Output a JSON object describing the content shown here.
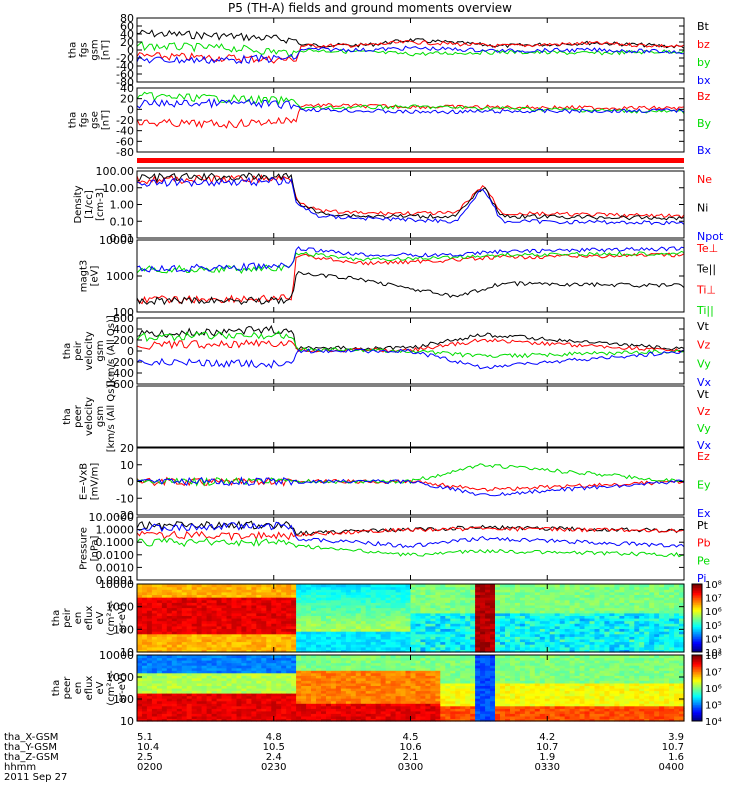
{
  "title": "P5 (TH-A) fields and ground moments overview",
  "colors": {
    "black": "#000000",
    "red": "#ff0000",
    "green": "#00dd00",
    "blue": "#0000ff"
  },
  "chart_data": [
    {
      "type": "line",
      "panel": "fgs_gsm",
      "ylabel": [
        "tha",
        "fgs",
        "gsm",
        "[nT]"
      ],
      "ylim": [
        -80,
        80
      ],
      "yticks": [
        "80",
        "60",
        "40",
        "20",
        "0",
        "-20",
        "-40",
        "-60",
        "-80"
      ],
      "legend": [
        {
          "name": "Bt",
          "color": "black"
        },
        {
          "name": "bz",
          "color": "red"
        },
        {
          "name": "by",
          "color": "green"
        },
        {
          "name": "bx",
          "color": "blue"
        }
      ],
      "series": [
        {
          "name": "Bt",
          "color": "black",
          "x": [
            0,
            20,
            35,
            36,
            50,
            60,
            80,
            100,
            120
          ],
          "y": [
            42,
            35,
            25,
            12,
            12,
            25,
            10,
            18,
            8
          ]
        },
        {
          "name": "bz",
          "color": "red",
          "x": [
            0,
            20,
            35,
            36,
            50,
            60,
            80,
            100,
            120
          ],
          "y": [
            -15,
            -20,
            -25,
            10,
            12,
            20,
            10,
            17,
            8
          ]
        },
        {
          "name": "by",
          "color": "green",
          "x": [
            0,
            20,
            35,
            36,
            50,
            60,
            80,
            100,
            120
          ],
          "y": [
            10,
            5,
            -8,
            0,
            -5,
            -10,
            -5,
            -8,
            -3
          ]
        },
        {
          "name": "bx",
          "color": "blue",
          "x": [
            0,
            20,
            35,
            36,
            50,
            60,
            80,
            100,
            120
          ],
          "y": [
            -25,
            -25,
            -20,
            2,
            0,
            5,
            -2,
            0,
            -5
          ]
        }
      ]
    },
    {
      "type": "line",
      "panel": "fgs_gse",
      "ylabel": [
        "tha",
        "fgs",
        "gse",
        "[nT]"
      ],
      "ylim": [
        -80,
        40
      ],
      "yticks": [
        "40",
        "20",
        "0",
        "-20",
        "-40",
        "-60",
        "-80"
      ],
      "legend": [
        {
          "name": "Bz",
          "color": "red"
        },
        {
          "name": "By",
          "color": "green"
        },
        {
          "name": "Bx",
          "color": "blue"
        }
      ],
      "series": [
        {
          "name": "Bz",
          "color": "red",
          "x": [
            0,
            20,
            35,
            36,
            60,
            120
          ],
          "y": [
            -25,
            -28,
            -20,
            8,
            5,
            2
          ]
        },
        {
          "name": "By",
          "color": "green",
          "x": [
            0,
            20,
            35,
            36,
            60,
            120
          ],
          "y": [
            25,
            20,
            15,
            2,
            5,
            -5
          ]
        },
        {
          "name": "Bx",
          "color": "blue",
          "x": [
            0,
            20,
            35,
            36,
            60,
            120
          ],
          "y": [
            10,
            12,
            8,
            0,
            -5,
            -2
          ]
        }
      ]
    },
    {
      "type": "line",
      "panel": "density",
      "log": true,
      "ylabel": [
        "Density",
        "[1/cc]",
        "[cm-3]"
      ],
      "ylim": [
        0.01,
        100
      ],
      "yticks": [
        "100.00",
        "10.00",
        "1.00",
        "0.10",
        "0.01"
      ],
      "legend": [
        {
          "name": "Ne",
          "color": "red"
        },
        {
          "name": "Ni",
          "color": "black"
        },
        {
          "name": "Npot",
          "color": "blue"
        }
      ],
      "series": [
        {
          "name": "Ne",
          "color": "red",
          "x": [
            0,
            34,
            35,
            40,
            50,
            70,
            76,
            80,
            120
          ],
          "y": [
            30,
            35,
            2,
            0.4,
            0.3,
            0.3,
            15,
            0.3,
            0.2
          ]
        },
        {
          "name": "Ni",
          "color": "black",
          "x": [
            0,
            34,
            35,
            40,
            50,
            70,
            76,
            80,
            120
          ],
          "y": [
            40,
            45,
            1.5,
            0.3,
            0.2,
            0.2,
            12,
            0.2,
            0.15
          ]
        },
        {
          "name": "Npot",
          "color": "blue",
          "x": [
            0,
            34,
            35,
            40,
            50,
            70,
            76,
            80,
            120
          ],
          "y": [
            20,
            25,
            1,
            0.2,
            0.15,
            0.1,
            10,
            0.1,
            0.08
          ]
        }
      ]
    },
    {
      "type": "line",
      "panel": "magt3",
      "log": true,
      "ylabel": [
        "magt3",
        "[eV]"
      ],
      "ylim": [
        30,
        10000
      ],
      "yticks": [
        "10000",
        "1000",
        "100"
      ],
      "legend": [
        {
          "name": "Te⊥",
          "color": "red"
        },
        {
          "name": "Te||",
          "color": "black"
        },
        {
          "name": "Ti⊥",
          "color": "red"
        },
        {
          "name": "Ti||",
          "color": "green"
        }
      ],
      "series": [
        {
          "name": "Ti⊥",
          "color": "red",
          "x": [
            0,
            34,
            35,
            50,
            70,
            80,
            120
          ],
          "y": [
            80,
            90,
            3000,
            1500,
            2000,
            2500,
            3000
          ]
        },
        {
          "name": "Ti||",
          "color": "green",
          "x": [
            0,
            34,
            35,
            50,
            70,
            80,
            120
          ],
          "y": [
            900,
            1000,
            3500,
            2000,
            2500,
            3000,
            3500
          ]
        },
        {
          "name": "Te||",
          "color": "black",
          "x": [
            0,
            34,
            35,
            50,
            70,
            80,
            120
          ],
          "y": [
            70,
            80,
            700,
            400,
            100,
            300,
            250
          ]
        },
        {
          "name": "Te⊥",
          "color": "blue",
          "x": [
            0,
            34,
            35,
            50,
            70,
            80,
            120
          ],
          "y": [
            1000,
            1200,
            5000,
            3000,
            3000,
            4000,
            5000
          ]
        }
      ]
    },
    {
      "type": "line",
      "panel": "peir_velocity",
      "ylabel": [
        "tha",
        "peir",
        "velocity",
        "gsm",
        "[km/s (All Qs)]"
      ],
      "ylim": [
        -600,
        600
      ],
      "yticks": [
        "600",
        "400",
        "200",
        "0",
        "-200",
        "-400",
        "-600"
      ],
      "legend": [
        {
          "name": "Vt",
          "color": "black"
        },
        {
          "name": "Vz",
          "color": "red"
        },
        {
          "name": "Vy",
          "color": "green"
        },
        {
          "name": "Vx",
          "color": "blue"
        }
      ],
      "series": [
        {
          "name": "Vt",
          "color": "black",
          "x": [
            0,
            34,
            35,
            60,
            76,
            120
          ],
          "y": [
            300,
            400,
            50,
            60,
            300,
            30
          ]
        },
        {
          "name": "Vz",
          "color": "red",
          "x": [
            0,
            34,
            35,
            60,
            76,
            120
          ],
          "y": [
            100,
            150,
            20,
            10,
            200,
            5
          ]
        },
        {
          "name": "Vy",
          "color": "green",
          "x": [
            0,
            34,
            35,
            60,
            76,
            120
          ],
          "y": [
            250,
            300,
            30,
            0,
            -100,
            0
          ]
        },
        {
          "name": "Vx",
          "color": "blue",
          "x": [
            0,
            34,
            35,
            60,
            76,
            120
          ],
          "y": [
            -200,
            -250,
            0,
            0,
            -300,
            -10
          ]
        }
      ]
    },
    {
      "type": "line",
      "panel": "peer_velocity",
      "ylabel": [
        "tha",
        "peer",
        "velocity",
        "gsm",
        "[km/s (All Qs)]"
      ],
      "ylim": [
        -600,
        600
      ],
      "yticks": [],
      "legend": [
        {
          "name": "Vt",
          "color": "black"
        },
        {
          "name": "Vz",
          "color": "red"
        },
        {
          "name": "Vy",
          "color": "green"
        },
        {
          "name": "Vx",
          "color": "blue"
        }
      ],
      "series": []
    },
    {
      "type": "line",
      "panel": "efield",
      "ylabel": [
        "E=-VxB",
        "[mV/m]"
      ],
      "ylim": [
        -20,
        20
      ],
      "yticks": [
        "20",
        "10",
        "0",
        "-10",
        "-20"
      ],
      "legend": [
        {
          "name": "Ez",
          "color": "red"
        },
        {
          "name": "Ey",
          "color": "green"
        },
        {
          "name": "Ex",
          "color": "blue"
        }
      ],
      "series": [
        {
          "name": "Ez",
          "color": "red",
          "x": [
            0,
            60,
            76,
            120
          ],
          "y": [
            0,
            0,
            -5,
            0
          ]
        },
        {
          "name": "Ey",
          "color": "green",
          "x": [
            0,
            60,
            76,
            120
          ],
          "y": [
            0,
            0,
            10,
            0
          ]
        },
        {
          "name": "Ex",
          "color": "blue",
          "x": [
            0,
            60,
            76,
            120
          ],
          "y": [
            0,
            0,
            -8,
            0
          ]
        }
      ]
    },
    {
      "type": "line",
      "panel": "pressure",
      "log": true,
      "ylabel": [
        "Pressure",
        "[nPa]"
      ],
      "ylim": [
        0.0001,
        10
      ],
      "yticks": [
        "10.0000",
        "1.0000",
        "0.1000",
        "0.0100",
        "0.0010",
        "0.0001"
      ],
      "legend": [
        {
          "name": "Pt",
          "color": "black"
        },
        {
          "name": "Pb",
          "color": "red"
        },
        {
          "name": "Pe",
          "color": "green"
        },
        {
          "name": "Pi",
          "color": "blue"
        }
      ],
      "series": [
        {
          "name": "Pt",
          "color": "black",
          "x": [
            0,
            34,
            35,
            60,
            76,
            120
          ],
          "y": [
            2,
            2.5,
            0.5,
            1,
            1.5,
            0.8
          ]
        },
        {
          "name": "Pb",
          "color": "red",
          "x": [
            0,
            34,
            35,
            60,
            76,
            120
          ],
          "y": [
            0.4,
            0.3,
            0.4,
            1,
            1.2,
            0.8
          ]
        },
        {
          "name": "Pe",
          "color": "green",
          "x": [
            0,
            34,
            35,
            60,
            76,
            120
          ],
          "y": [
            0.1,
            0.1,
            0.05,
            0.01,
            0.02,
            0.01
          ]
        },
        {
          "name": "Pi",
          "color": "blue",
          "x": [
            0,
            34,
            35,
            60,
            76,
            120
          ],
          "y": [
            1.5,
            2,
            0.2,
            0.05,
            0.2,
            0.05
          ]
        }
      ]
    },
    {
      "type": "heatmap",
      "panel": "peir_eflux",
      "ylabel": [
        "tha",
        "peir",
        "en",
        "eflux",
        "eV",
        "(cm²-s-",
        "sr-eV)"
      ],
      "ylim": [
        10,
        10000
      ],
      "yticks": [
        "10000",
        "1000",
        "100",
        "10"
      ],
      "colorbar": {
        "ticks": [
          "10⁸",
          "10⁷",
          "10⁶",
          "10⁵",
          "10⁴",
          "10³"
        ]
      }
    },
    {
      "type": "heatmap",
      "panel": "peer_eflux",
      "ylabel": [
        "tha",
        "peer",
        "en",
        "eflux",
        "eV",
        "(cm²-s-",
        "sr-eV)"
      ],
      "ylim": [
        10,
        10000
      ],
      "yticks": [
        "10000",
        "1000",
        "100",
        "10"
      ],
      "colorbar": {
        "ticks": [
          "10⁸",
          "10⁷",
          "10⁶",
          "10⁵",
          "10⁴"
        ]
      }
    }
  ],
  "xaxis": {
    "rows": [
      {
        "label": "tha_X-GSM",
        "values": [
          "5.1",
          "4.8",
          "4.5",
          "4.2",
          "3.9"
        ]
      },
      {
        "label": "tha_Y-GSM",
        "values": [
          "10.4",
          "10.5",
          "10.6",
          "10.7",
          "10.7"
        ]
      },
      {
        "label": "tha_Z-GSM",
        "values": [
          "2.5",
          "2.4",
          "2.1",
          "1.9",
          "1.6"
        ]
      },
      {
        "label": "hhmm",
        "values": [
          "0200",
          "0230",
          "0300",
          "0330",
          "0400"
        ]
      }
    ],
    "date": "2011 Sep 27"
  }
}
